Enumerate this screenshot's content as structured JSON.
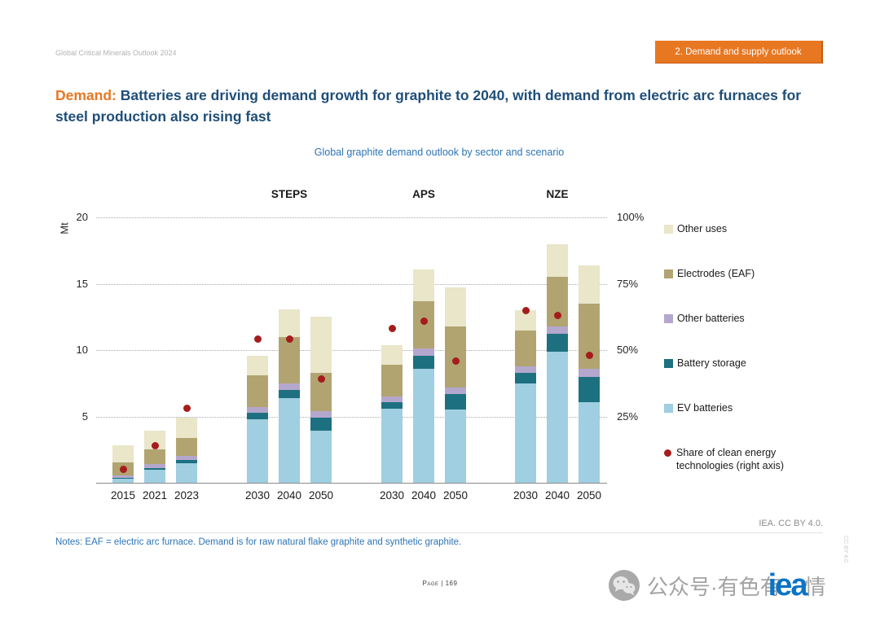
{
  "page": {
    "header_left": "Global Critical Minerals Outlook 2024",
    "section_badge": "2. Demand and supply outlook",
    "title_prefix": "Demand:",
    "title_rest": " Batteries are driving demand growth for graphite to 2040, with demand from electric arc furnaces for steel production also rising fast",
    "notes": "Notes: EAF = electric arc furnace. Demand is for raw natural flake graphite and synthetic graphite.",
    "credit": "IEA. CC BY 4.0.",
    "page_number": "Page | 169",
    "side_text": "CC BY 4.0",
    "watermark": {
      "text_before": "公众号·有色有",
      "logo_text": "iea",
      "text_after": "情"
    }
  },
  "chart_data": {
    "type": "bar",
    "subtype": "stacked-bars-with-share-dots",
    "title": "Global graphite demand outlook by sector and scenario",
    "left_axis": {
      "label": "Mt",
      "min": 0,
      "max": 20,
      "ticks": [
        5,
        10,
        15,
        20
      ]
    },
    "right_axis": {
      "label": "Share of clean energy technologies",
      "min": 0,
      "max": 100,
      "tick_labels": [
        "25%",
        "50%",
        "75%",
        "100%"
      ]
    },
    "stack_order": [
      "ev_batteries",
      "battery_storage",
      "other_batteries",
      "electrodes_eaf",
      "other_uses"
    ],
    "colors": {
      "ev_batteries": "#9fcfe0",
      "battery_storage": "#1d7080",
      "other_batteries": "#b4a7cd",
      "electrodes_eaf": "#b1a470",
      "other_uses": "#e9e6c9",
      "share_dot": "#a51c1c"
    },
    "legend": [
      {
        "key": "other_uses",
        "label": "Other uses"
      },
      {
        "key": "electrodes_eaf",
        "label": "Electrodes (EAF)"
      },
      {
        "key": "other_batteries",
        "label": "Other batteries"
      },
      {
        "key": "battery_storage",
        "label": "Battery storage"
      },
      {
        "key": "ev_batteries",
        "label": "EV batteries"
      },
      {
        "key": "share_dot",
        "label": "Share of clean energy technologies (right axis)"
      }
    ],
    "groups": [
      {
        "label": "",
        "bars": [
          {
            "year": "2015",
            "values": {
              "ev_batteries": 0.3,
              "battery_storage": 0.05,
              "other_batteries": 0.2,
              "electrodes_eaf": 1.0,
              "other_uses": 1.3
            },
            "share_pct": 5
          },
          {
            "year": "2021",
            "values": {
              "ev_batteries": 1.0,
              "battery_storage": 0.1,
              "other_batteries": 0.3,
              "electrodes_eaf": 1.1,
              "other_uses": 1.4
            },
            "share_pct": 14
          },
          {
            "year": "2023",
            "values": {
              "ev_batteries": 1.5,
              "battery_storage": 0.2,
              "other_batteries": 0.3,
              "electrodes_eaf": 1.4,
              "other_uses": 1.5
            },
            "share_pct": 28
          }
        ]
      },
      {
        "label": "STEPS",
        "bars": [
          {
            "year": "2030",
            "values": {
              "ev_batteries": 4.8,
              "battery_storage": 0.5,
              "other_batteries": 0.4,
              "electrodes_eaf": 2.4,
              "other_uses": 1.5
            },
            "share_pct": 54
          },
          {
            "year": "2040",
            "values": {
              "ev_batteries": 6.4,
              "battery_storage": 0.6,
              "other_batteries": 0.5,
              "electrodes_eaf": 3.5,
              "other_uses": 2.1
            },
            "share_pct": 54
          },
          {
            "year": "2050",
            "values": {
              "ev_batteries": 3.9,
              "battery_storage": 1.0,
              "other_batteries": 0.5,
              "electrodes_eaf": 2.9,
              "other_uses": 4.2
            },
            "share_pct": 39
          }
        ]
      },
      {
        "label": "APS",
        "bars": [
          {
            "year": "2030",
            "values": {
              "ev_batteries": 5.6,
              "battery_storage": 0.5,
              "other_batteries": 0.4,
              "electrodes_eaf": 2.4,
              "other_uses": 1.5
            },
            "share_pct": 58
          },
          {
            "year": "2040",
            "values": {
              "ev_batteries": 8.6,
              "battery_storage": 1.0,
              "other_batteries": 0.5,
              "electrodes_eaf": 3.6,
              "other_uses": 2.4
            },
            "share_pct": 61
          },
          {
            "year": "2050",
            "values": {
              "ev_batteries": 5.5,
              "battery_storage": 1.2,
              "other_batteries": 0.5,
              "electrodes_eaf": 4.6,
              "other_uses": 2.9
            },
            "share_pct": 46
          }
        ]
      },
      {
        "label": "NZE",
        "bars": [
          {
            "year": "2030",
            "values": {
              "ev_batteries": 7.5,
              "battery_storage": 0.8,
              "other_batteries": 0.5,
              "electrodes_eaf": 2.7,
              "other_uses": 1.5
            },
            "share_pct": 65
          },
          {
            "year": "2040",
            "values": {
              "ev_batteries": 9.9,
              "battery_storage": 1.3,
              "other_batteries": 0.6,
              "electrodes_eaf": 3.7,
              "other_uses": 2.5
            },
            "share_pct": 63
          },
          {
            "year": "2050",
            "values": {
              "ev_batteries": 6.1,
              "battery_storage": 1.9,
              "other_batteries": 0.6,
              "electrodes_eaf": 4.9,
              "other_uses": 2.9
            },
            "share_pct": 48
          }
        ]
      }
    ]
  }
}
